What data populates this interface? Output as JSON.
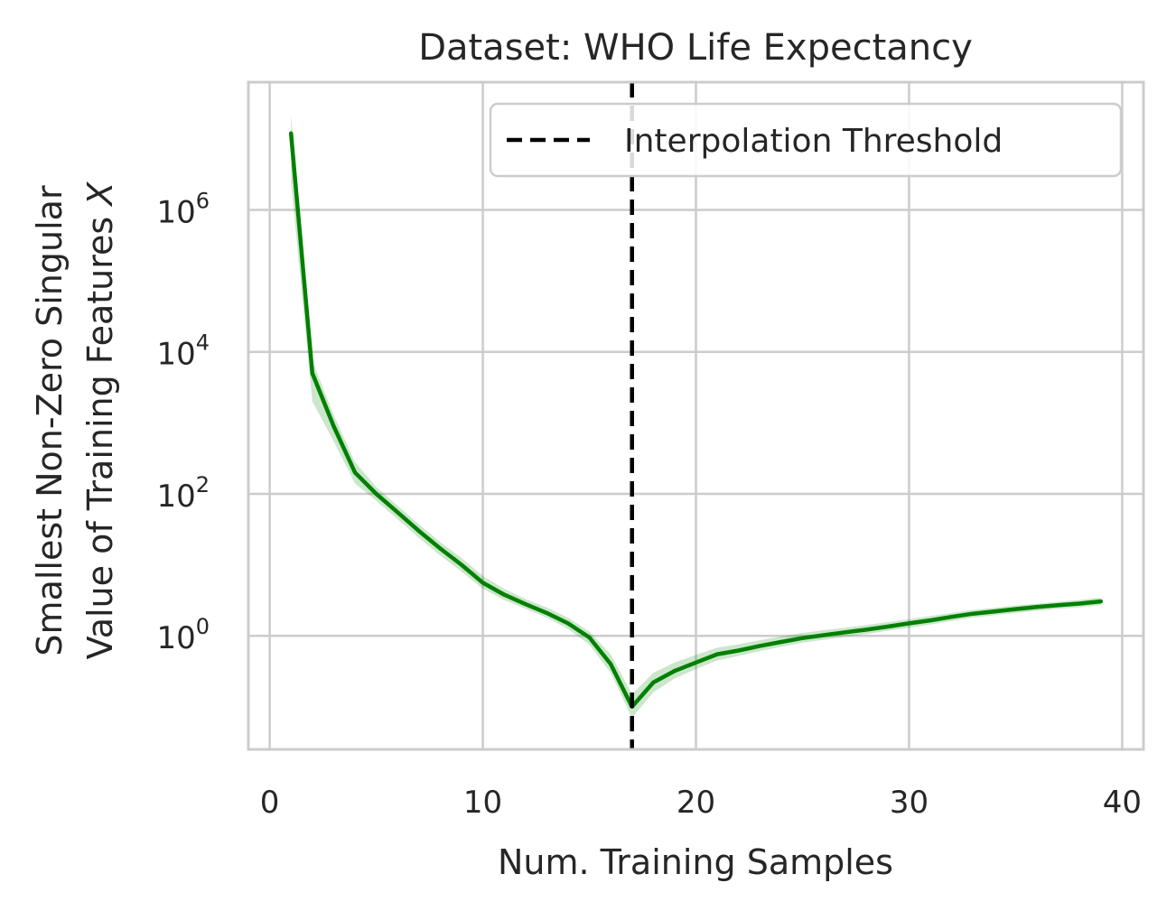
{
  "chart_data": {
    "type": "line",
    "title": "Dataset: WHO Life Expectancy",
    "xlabel": "Num. Training Samples",
    "ylabel_line1": "Smallest Non-Zero Singular",
    "ylabel_line2": "Value of Training Features",
    "ylabel_var": "X",
    "xlim": [
      -1,
      41
    ],
    "ylim_log10": [
      -1.6,
      7.8
    ],
    "yscale": "log",
    "grid": true,
    "legend_position": "top-right",
    "x_ticks": [
      {
        "value": 0,
        "label": "0"
      },
      {
        "value": 10,
        "label": "10"
      },
      {
        "value": 20,
        "label": "20"
      },
      {
        "value": 30,
        "label": "30"
      },
      {
        "value": 40,
        "label": "40"
      }
    ],
    "y_ticks": [
      {
        "value": 1,
        "base": "10",
        "exp": "0"
      },
      {
        "value": 100,
        "base": "10",
        "exp": "2"
      },
      {
        "value": 10000,
        "base": "10",
        "exp": "4"
      },
      {
        "value": 1000000,
        "base": "10",
        "exp": "6"
      }
    ],
    "series": [
      {
        "color": "#008000",
        "band_color": "#008000",
        "x": [
          1,
          2,
          3,
          4,
          5,
          6,
          7,
          8,
          9,
          10,
          11,
          12,
          13,
          14,
          15,
          16,
          17,
          18,
          19,
          20,
          21,
          22,
          23,
          24,
          25,
          26,
          27,
          28,
          29,
          30,
          31,
          32,
          33,
          34,
          35,
          36,
          37,
          38,
          39
        ],
        "y": [
          12000000,
          5000,
          900,
          200,
          100,
          55,
          30,
          17,
          10,
          5.6,
          3.8,
          2.8,
          2.1,
          1.5,
          0.95,
          0.4,
          0.1,
          0.22,
          0.32,
          0.42,
          0.55,
          0.62,
          0.72,
          0.82,
          0.93,
          1.02,
          1.12,
          1.22,
          1.35,
          1.5,
          1.65,
          1.85,
          2.05,
          2.2,
          2.38,
          2.55,
          2.7,
          2.85,
          3.05
        ],
        "y_lower": [
          2500000,
          2000,
          550,
          140,
          80,
          44,
          24,
          13.5,
          8,
          4.6,
          3.2,
          2.4,
          1.8,
          1.25,
          0.75,
          0.3,
          0.07,
          0.16,
          0.25,
          0.34,
          0.45,
          0.52,
          0.61,
          0.7,
          0.8,
          0.88,
          0.97,
          1.06,
          1.18,
          1.3,
          1.44,
          1.62,
          1.8,
          1.95,
          2.1,
          2.25,
          2.4,
          2.52,
          2.7
        ],
        "y_upper": [
          22000000,
          7500,
          1300,
          280,
          125,
          68,
          37,
          21,
          12.5,
          7,
          4.6,
          3.3,
          2.5,
          1.8,
          1.15,
          0.55,
          0.15,
          0.3,
          0.42,
          0.54,
          0.68,
          0.76,
          0.87,
          0.98,
          1.1,
          1.2,
          1.3,
          1.42,
          1.56,
          1.72,
          1.9,
          2.1,
          2.32,
          2.48,
          2.68,
          2.85,
          3.02,
          3.2,
          3.45
        ]
      }
    ],
    "vline": {
      "x": 17,
      "label": "Interpolation Threshold",
      "color": "#000000"
    }
  }
}
